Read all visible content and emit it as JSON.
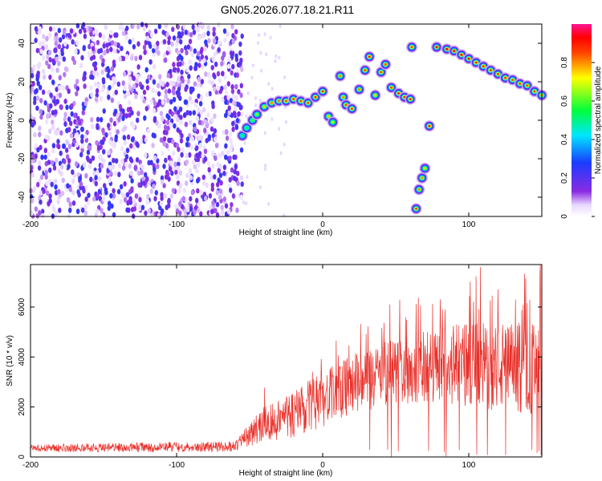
{
  "figure_title": "GN05.2026.077.18.21.R11",
  "chart_data": [
    {
      "type": "heatmap",
      "panel": "top",
      "xlabel": "Height of straight line (km)",
      "ylabel": "Frequency (Hz)",
      "xlim": [
        -200,
        150
      ],
      "ylim": [
        -50,
        50
      ],
      "x_ticks": [
        -200,
        -100,
        0,
        100
      ],
      "y_ticks": [
        -40,
        -20,
        0,
        20,
        40
      ],
      "colorbar": {
        "label": "Normalized spectral amplitude",
        "range": [
          0,
          1
        ],
        "ticks": [
          0,
          0.2,
          0.4,
          0.6,
          0.8
        ],
        "colormap": "rainbow (white → violet → blue → cyan → green → yellow → red → magenta)"
      },
      "noise_region": {
        "x_range": [
          -200,
          -55
        ],
        "y_range": [
          -50,
          50
        ],
        "typical_amplitude": 0.15
      },
      "ridge": {
        "description": "Frequency of peak spectral amplitude vs height",
        "points": [
          {
            "x": -55,
            "y": -8,
            "a": 0.5
          },
          {
            "x": -52,
            "y": -4,
            "a": 0.55
          },
          {
            "x": -48,
            "y": 0,
            "a": 0.6
          },
          {
            "x": -45,
            "y": 3,
            "a": 0.65
          },
          {
            "x": -40,
            "y": 7,
            "a": 0.75
          },
          {
            "x": -35,
            "y": 9,
            "a": 0.8
          },
          {
            "x": -30,
            "y": 10,
            "a": 0.82
          },
          {
            "x": -25,
            "y": 10,
            "a": 0.85
          },
          {
            "x": -20,
            "y": 11,
            "a": 0.85
          },
          {
            "x": -15,
            "y": 10,
            "a": 0.85
          },
          {
            "x": -10,
            "y": 9,
            "a": 0.85
          },
          {
            "x": -5,
            "y": 12,
            "a": 0.88
          },
          {
            "x": 0,
            "y": 15,
            "a": 0.9
          },
          {
            "x": 4,
            "y": 2,
            "a": 0.75
          },
          {
            "x": 7,
            "y": -1,
            "a": 0.7
          },
          {
            "x": 12,
            "y": 23,
            "a": 0.8
          },
          {
            "x": 14,
            "y": 12,
            "a": 0.8
          },
          {
            "x": 16,
            "y": 8,
            "a": 0.85
          },
          {
            "x": 20,
            "y": 6,
            "a": 0.88
          },
          {
            "x": 25,
            "y": 16,
            "a": 0.8
          },
          {
            "x": 29,
            "y": 26,
            "a": 0.85
          },
          {
            "x": 32,
            "y": 33,
            "a": 0.9
          },
          {
            "x": 36,
            "y": 13,
            "a": 0.75
          },
          {
            "x": 40,
            "y": 25,
            "a": 0.85
          },
          {
            "x": 43,
            "y": 29,
            "a": 0.85
          },
          {
            "x": 47,
            "y": 17,
            "a": 0.85
          },
          {
            "x": 52,
            "y": 14,
            "a": 0.9
          },
          {
            "x": 56,
            "y": 12,
            "a": 0.9
          },
          {
            "x": 60,
            "y": 11,
            "a": 0.9
          },
          {
            "x": 61,
            "y": 38,
            "a": 0.85
          },
          {
            "x": 64,
            "y": -46,
            "a": 0.85
          },
          {
            "x": 66,
            "y": -36,
            "a": 0.8
          },
          {
            "x": 68,
            "y": -30,
            "a": 0.8
          },
          {
            "x": 70,
            "y": -25,
            "a": 0.75
          },
          {
            "x": 73,
            "y": -3,
            "a": 0.9
          },
          {
            "x": 78,
            "y": 38,
            "a": 0.95
          },
          {
            "x": 85,
            "y": 37,
            "a": 0.95
          },
          {
            "x": 90,
            "y": 36,
            "a": 0.95
          },
          {
            "x": 95,
            "y": 34,
            "a": 0.93
          },
          {
            "x": 100,
            "y": 32,
            "a": 0.92
          },
          {
            "x": 105,
            "y": 30,
            "a": 0.9
          },
          {
            "x": 110,
            "y": 28,
            "a": 0.9
          },
          {
            "x": 115,
            "y": 26,
            "a": 0.88
          },
          {
            "x": 120,
            "y": 24,
            "a": 0.87
          },
          {
            "x": 125,
            "y": 22,
            "a": 0.86
          },
          {
            "x": 130,
            "y": 21,
            "a": 0.85
          },
          {
            "x": 135,
            "y": 19,
            "a": 0.85
          },
          {
            "x": 140,
            "y": 18,
            "a": 0.85
          },
          {
            "x": 145,
            "y": 15,
            "a": 0.85
          },
          {
            "x": 150,
            "y": 13,
            "a": 0.8
          }
        ]
      }
    },
    {
      "type": "line",
      "panel": "bottom",
      "xlabel": "Height of straight line (km)",
      "ylabel": "SNR (10 * v/v)",
      "xlim": [
        -200,
        150
      ],
      "ylim": [
        0,
        7700
      ],
      "x_ticks": [
        -200,
        -100,
        0,
        100
      ],
      "y_ticks": [
        0,
        2000,
        4000,
        6000
      ],
      "series": [
        {
          "color": "#e8302a",
          "envelope": [
            {
              "x": -200,
              "mean": 350,
              "spread": 150
            },
            {
              "x": -150,
              "mean": 380,
              "spread": 180
            },
            {
              "x": -100,
              "mean": 400,
              "spread": 200
            },
            {
              "x": -60,
              "mean": 420,
              "spread": 200
            },
            {
              "x": -42,
              "mean": 1300,
              "spread": 700
            },
            {
              "x": -20,
              "mean": 1700,
              "spread": 1000
            },
            {
              "x": 0,
              "mean": 2300,
              "spread": 1100
            },
            {
              "x": 20,
              "mean": 2900,
              "spread": 1200
            },
            {
              "x": 40,
              "mean": 3300,
              "spread": 1300
            },
            {
              "x": 60,
              "mean": 3500,
              "spread": 1400
            },
            {
              "x": 80,
              "mean": 3700,
              "spread": 1500
            },
            {
              "x": 100,
              "mean": 3700,
              "spread": 1700
            },
            {
              "x": 120,
              "mean": 3600,
              "spread": 1800
            },
            {
              "x": 150,
              "mean": 3500,
              "spread": 1900
            }
          ],
          "peaks": [
            {
              "x": 46,
              "y": 6100
            },
            {
              "x": 82,
              "y": 5900
            },
            {
              "x": 108,
              "y": 7600
            },
            {
              "x": 120,
              "y": 6700
            },
            {
              "x": 132,
              "y": 6300
            },
            {
              "x": 149,
              "y": 7700
            }
          ]
        }
      ]
    }
  ]
}
